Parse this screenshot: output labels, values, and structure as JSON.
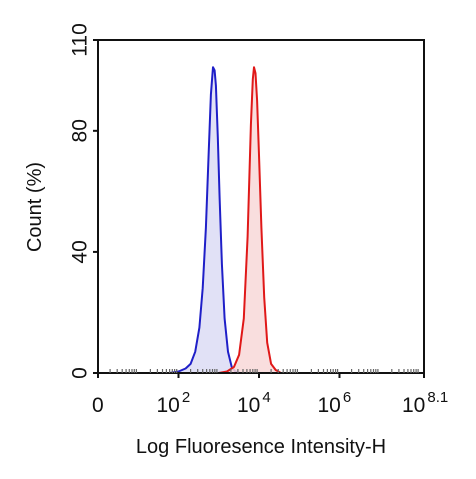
{
  "chart_data": {
    "type": "area",
    "title": "",
    "xlabel": "Log Fluoresence Intensity-H",
    "ylabel": "Count  (%)",
    "x_scale": "log10",
    "xlim": [
      1,
      125892541
    ],
    "ylim": [
      0,
      110
    ],
    "grid": false,
    "x_ticks": [
      {
        "base": "0",
        "exp": ""
      },
      {
        "base": "10",
        "exp": "2"
      },
      {
        "base": "10",
        "exp": "4"
      },
      {
        "base": "10",
        "exp": "6"
      },
      {
        "base": "10",
        "exp": "8.1"
      }
    ],
    "y_ticks": [
      "0",
      "40",
      "80",
      "110"
    ],
    "series": [
      {
        "color": "#1f1fc8",
        "fill": "#dcdcf4",
        "x": [
          60,
          100,
          150,
          200,
          260,
          330,
          400,
          480,
          560,
          640,
          720,
          790,
          850,
          950,
          1050,
          1200,
          1400,
          1700,
          2100,
          2600,
          3500
        ],
        "y": [
          0,
          0.5,
          1.5,
          3,
          7,
          15,
          28,
          48,
          72,
          92,
          101,
          100,
          95,
          78,
          58,
          36,
          18,
          7,
          2,
          0.5,
          0
        ]
      },
      {
        "color": "#e01818",
        "fill": "#f8d8d8",
        "x": [
          1000,
          1600,
          2400,
          3200,
          4200,
          5200,
          6300,
          7000,
          7500,
          8200,
          9000,
          10000,
          11500,
          13500,
          16000,
          20000,
          26000,
          35000
        ],
        "y": [
          0,
          0.5,
          2,
          6,
          18,
          45,
          82,
          97,
          101,
          99,
          90,
          72,
          48,
          25,
          10,
          3,
          1,
          0
        ]
      }
    ]
  }
}
